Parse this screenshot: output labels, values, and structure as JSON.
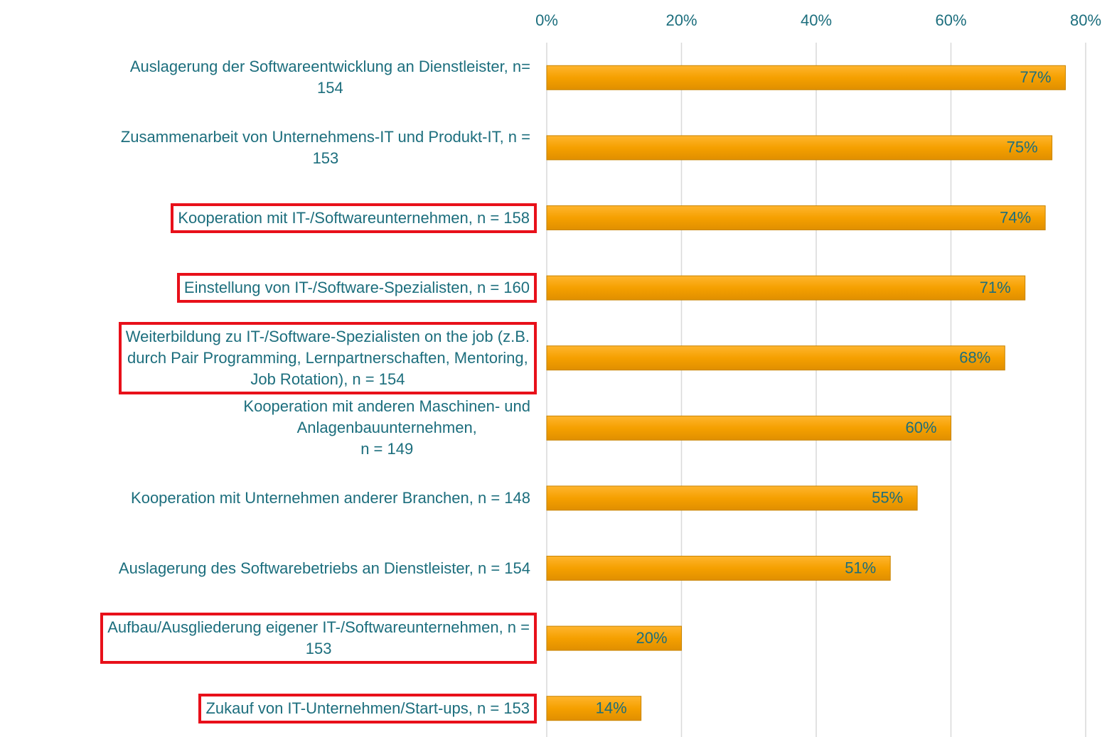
{
  "chart_data": {
    "type": "barh",
    "categories": [
      "Auslagerung der Softwareentwicklung an Dienstleister, n=\n154",
      "Zusammenarbeit von Unternehmens-IT und Produkt-IT, n =\n153",
      "Kooperation mit IT-/Softwareunternehmen, n = 158",
      "Einstellung von IT-/Software-Spezialisten, n = 160",
      "Weiterbildung zu IT-/Software-Spezialisten on the job (z.B.\ndurch Pair Programming, Lernpartnerschaften, Mentoring,\nJob Rotation), n = 154",
      "Kooperation mit anderen Maschinen- und\nAnlagenbauunternehmen,\nn = 149",
      "Kooperation mit Unternehmen anderer Branchen, n = 148",
      "Auslagerung des Softwarebetriebs an Dienstleister, n = 154",
      "Aufbau/Ausgliederung eigener IT-/Softwareunternehmen, n =\n153",
      "Zukauf von IT-Unternehmen/Start-ups, n = 153"
    ],
    "values": [
      77,
      75,
      74,
      71,
      68,
      60,
      55,
      51,
      20,
      14
    ],
    "value_labels": [
      "77%",
      "75%",
      "74%",
      "71%",
      "68%",
      "60%",
      "55%",
      "51%",
      "20%",
      "14%"
    ],
    "color": "#f5a000",
    "xlim": [
      0,
      80
    ],
    "xticks": [
      {
        "value": 0,
        "label": "0%"
      },
      {
        "value": 20,
        "label": "20%"
      },
      {
        "value": 40,
        "label": "40%"
      },
      {
        "value": 60,
        "label": "60%"
      },
      {
        "value": 80,
        "label": "80%"
      }
    ],
    "grid": true,
    "highlighted": [
      2,
      3,
      4,
      8,
      9
    ],
    "highlight_color": "#e8101a"
  }
}
